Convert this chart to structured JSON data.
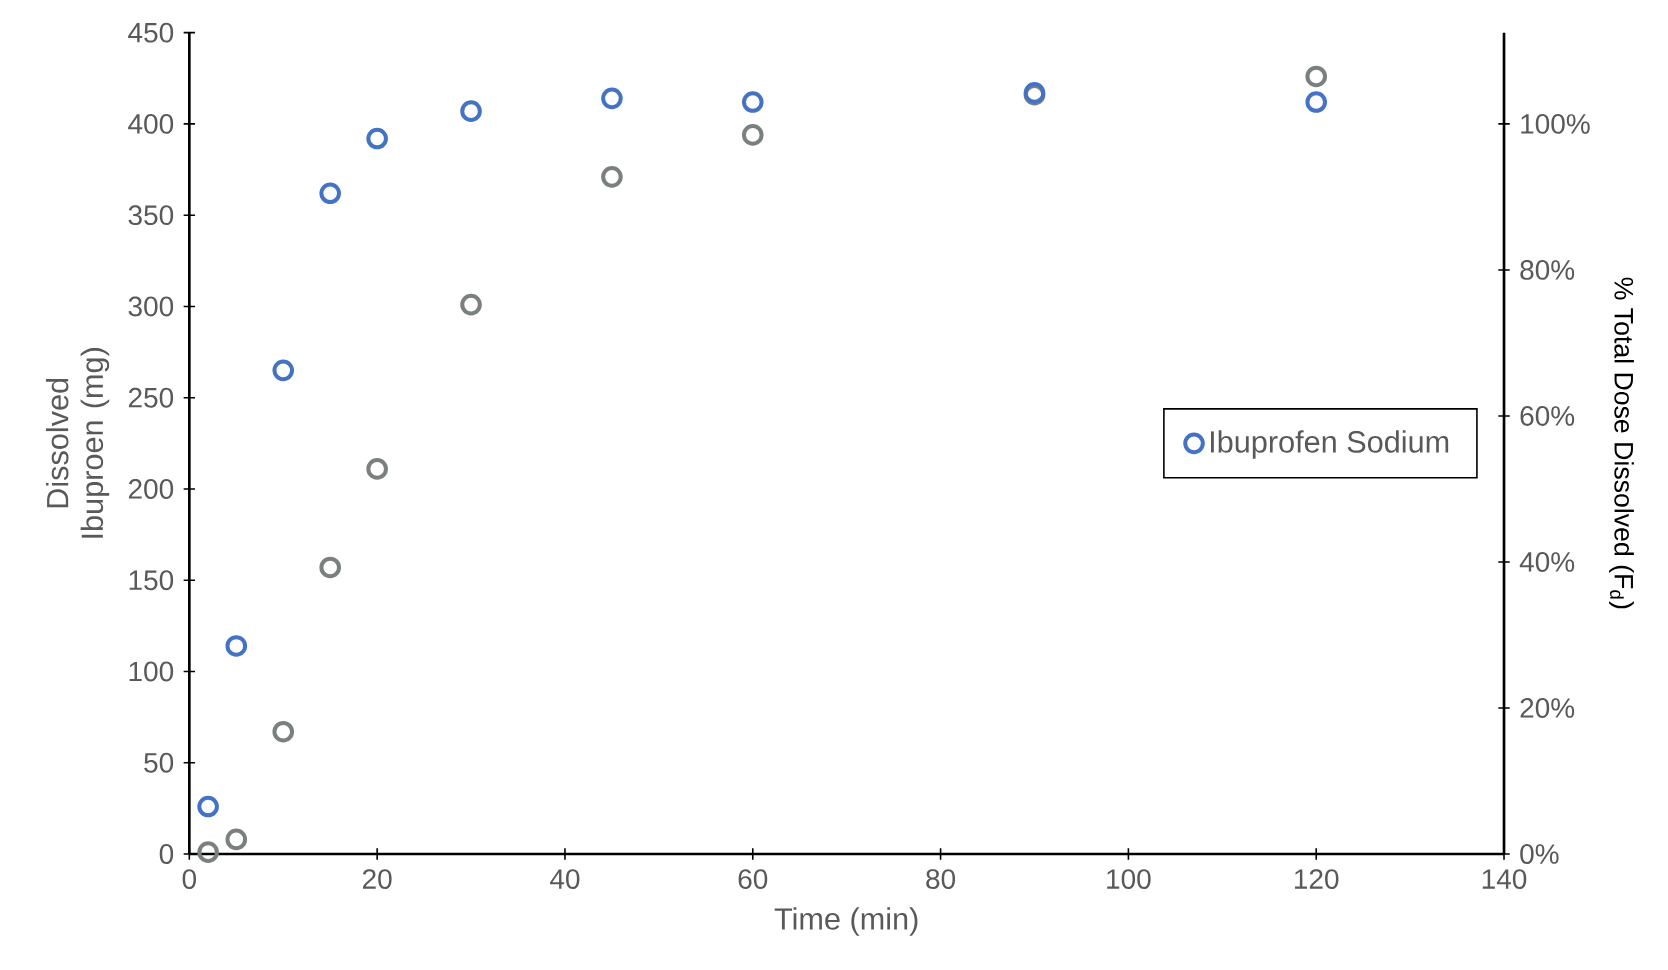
{
  "chart_data": {
    "type": "scatter",
    "xlabel": "Time (min)",
    "ylabel": "Dissolved Ibuproen (mg)",
    "y2label": "% Total Dose Dissolved (F$_{d}$)",
    "xlim": [
      0,
      140
    ],
    "xticks": [
      0,
      20,
      40,
      60,
      80,
      100,
      120,
      140
    ],
    "ylim": [
      0,
      450
    ],
    "yticks": [
      0,
      50,
      100,
      150,
      200,
      250,
      300,
      350,
      400,
      450
    ],
    "y2lim": [
      0,
      112.5
    ],
    "y2ticks": [
      {
        "value": 0,
        "label": "0%"
      },
      {
        "value": 20,
        "label": "20%"
      },
      {
        "value": 40,
        "label": "40%"
      },
      {
        "value": 60,
        "label": "60%"
      },
      {
        "value": 80,
        "label": "80%"
      },
      {
        "value": 100,
        "label": "100%"
      }
    ],
    "x": [
      2,
      5,
      10,
      15,
      20,
      30,
      45,
      60,
      90,
      120
    ],
    "series": [
      {
        "name": "Ibuprofen Sodium",
        "color": "#4472c4",
        "values": [
          26,
          114,
          265,
          362,
          392,
          407,
          414,
          412,
          417,
          412
        ]
      },
      {
        "color": "#7a7f80",
        "values": [
          1,
          8,
          67,
          157,
          211,
          301,
          371,
          394,
          416,
          426
        ]
      }
    ],
    "marker": "circle",
    "legend": "right",
    "grid": false
  }
}
